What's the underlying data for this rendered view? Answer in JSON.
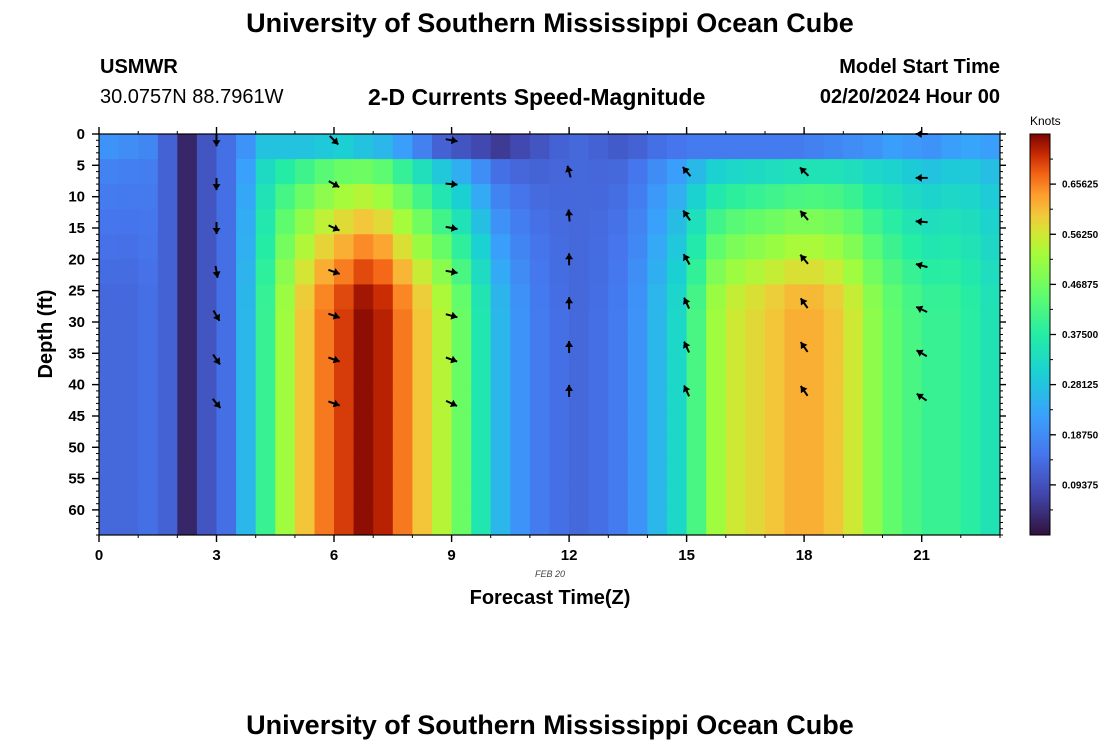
{
  "header": {
    "title": "University of Southern Mississippi Ocean Cube",
    "station": "USMWR",
    "coordinates": "30.0757N  88.7961W",
    "subtitle": "2-D Currents Speed-Magnitude",
    "model_label": "Model Start Time",
    "model_time": "02/20/2024 Hour 00"
  },
  "footer": {
    "title_repeat": "University of Southern Mississippi Ocean Cube"
  },
  "colors": {
    "low": "#30123b",
    "high": "#7a0403",
    "arrow": "#000000"
  },
  "chart_data": {
    "type": "heatmap",
    "title": "2-D Currents Speed-Magnitude",
    "xlabel": "Forecast Time(Z)",
    "ylabel": "Depth (ft)",
    "date_label": "FEB 20",
    "xlim": [
      0,
      23
    ],
    "ylim": [
      0,
      64
    ],
    "x_ticks": [
      0,
      3,
      6,
      9,
      12,
      15,
      18,
      21
    ],
    "y_ticks": [
      0,
      5,
      10,
      15,
      20,
      25,
      30,
      35,
      40,
      45,
      50,
      55,
      60
    ],
    "colorbar": {
      "unit": "Knots",
      "range": [
        0,
        0.75
      ],
      "tick_values": [
        0.09375,
        0.1875,
        0.28125,
        0.375,
        0.46875,
        0.5625,
        0.65625
      ],
      "tick_labels": [
        "0.09375",
        "0.18750",
        "0.28125",
        "0.37500",
        "0.46875",
        "0.56250",
        "0.65625"
      ]
    },
    "hours": [
      0,
      0.5,
      1,
      1.5,
      2,
      2.5,
      3,
      3.5,
      4,
      4.5,
      5,
      5.5,
      6,
      6.5,
      7,
      7.5,
      8,
      8.5,
      9,
      9.5,
      10,
      10.5,
      11,
      11.5,
      12,
      12.5,
      13,
      13.5,
      14,
      14.5,
      15,
      15.5,
      16,
      16.5,
      17,
      17.5,
      18,
      18.5,
      19,
      19.5,
      20,
      20.5,
      21,
      21.5,
      22,
      22.5
    ],
    "depths": [
      0,
      4,
      8,
      12,
      16,
      20,
      24,
      28,
      32,
      36,
      40,
      44,
      48,
      52,
      56,
      60
    ],
    "column_profiles": {
      "surface_speed": [
        0.2,
        0.19,
        0.18,
        0.12,
        0.03,
        0.1,
        0.14,
        0.2,
        0.28,
        0.28,
        0.28,
        0.29,
        0.3,
        0.28,
        0.26,
        0.22,
        0.17,
        0.12,
        0.1,
        0.08,
        0.06,
        0.08,
        0.1,
        0.12,
        0.13,
        0.12,
        0.11,
        0.12,
        0.14,
        0.15,
        0.16,
        0.16,
        0.16,
        0.16,
        0.16,
        0.16,
        0.17,
        0.18,
        0.19,
        0.2,
        0.22,
        0.21,
        0.2,
        0.22,
        0.23,
        0.22
      ],
      "deep_speed": [
        0.13,
        0.13,
        0.14,
        0.12,
        0.03,
        0.1,
        0.14,
        0.26,
        0.4,
        0.52,
        0.6,
        0.66,
        0.7,
        0.74,
        0.72,
        0.66,
        0.6,
        0.54,
        0.46,
        0.36,
        0.26,
        0.2,
        0.16,
        0.14,
        0.13,
        0.14,
        0.16,
        0.2,
        0.26,
        0.32,
        0.42,
        0.52,
        0.56,
        0.58,
        0.6,
        0.62,
        0.62,
        0.6,
        0.56,
        0.5,
        0.45,
        0.42,
        0.4,
        0.4,
        0.38,
        0.35
      ]
    },
    "vectors": [
      {
        "hour": 3,
        "depths": [
          1,
          8,
          15,
          22,
          29,
          36,
          43
        ],
        "angles": [
          180,
          180,
          180,
          170,
          150,
          145,
          140
        ]
      },
      {
        "hour": 6,
        "depths": [
          1,
          8,
          15,
          22,
          29,
          36,
          43
        ],
        "angles": [
          135,
          120,
          115,
          110,
          110,
          110,
          110
        ]
      },
      {
        "hour": 9,
        "depths": [
          1,
          8,
          15,
          22,
          29,
          36,
          43
        ],
        "angles": [
          100,
          95,
          100,
          100,
          105,
          110,
          115
        ]
      },
      {
        "hour": 12,
        "depths": [
          6,
          13,
          20,
          27,
          34,
          41
        ],
        "angles": [
          345,
          355,
          0,
          0,
          0,
          0
        ]
      },
      {
        "hour": 15,
        "depths": [
          6,
          13,
          20,
          27,
          34,
          41
        ],
        "angles": [
          320,
          325,
          330,
          335,
          335,
          335
        ]
      },
      {
        "hour": 18,
        "depths": [
          6,
          13,
          20,
          27,
          34,
          41
        ],
        "angles": [
          315,
          320,
          320,
          325,
          325,
          325
        ]
      },
      {
        "hour": 21,
        "depths": [
          0,
          7,
          14,
          21,
          28,
          35,
          42
        ],
        "angles": [
          270,
          270,
          275,
          285,
          295,
          300,
          305
        ]
      }
    ]
  }
}
